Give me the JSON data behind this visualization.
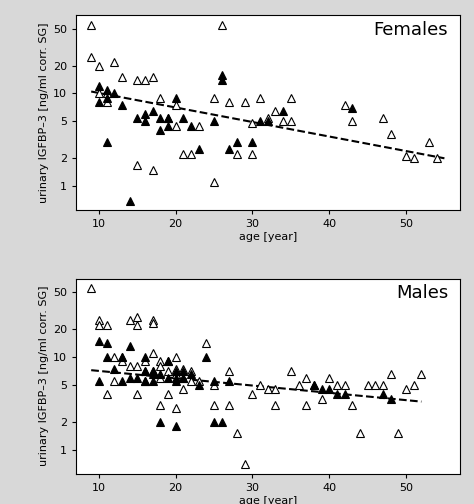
{
  "females_open_x": [
    9,
    9,
    10,
    10,
    11,
    11,
    12,
    13,
    15,
    15,
    16,
    17,
    17,
    18,
    19,
    20,
    20,
    21,
    22,
    23,
    25,
    25,
    26,
    27,
    28,
    29,
    30,
    30,
    31,
    32,
    33,
    34,
    35,
    35,
    42,
    43,
    47,
    48,
    50,
    51,
    53,
    54
  ],
  "females_open_y": [
    55,
    25,
    20,
    10,
    10,
    8,
    22,
    15,
    14,
    1.7,
    14,
    15,
    1.5,
    9,
    5.5,
    7.5,
    4.5,
    2.2,
    2.2,
    4.5,
    1.1,
    9,
    55,
    8,
    2.2,
    8,
    4.8,
    2.2,
    9,
    5.5,
    6.5,
    5,
    5,
    9,
    7.5,
    5,
    5.5,
    3.7,
    2.1,
    2,
    3,
    2
  ],
  "females_filled_x": [
    10,
    10,
    11,
    11,
    11,
    12,
    13,
    14,
    15,
    16,
    16,
    17,
    18,
    18,
    19,
    19,
    20,
    21,
    22,
    23,
    25,
    26,
    26,
    27,
    28,
    30,
    31,
    32,
    34,
    43
  ],
  "females_filled_y": [
    12,
    8,
    11,
    9,
    3,
    10,
    7.5,
    0.7,
    5.5,
    6,
    5,
    6.5,
    5.5,
    4,
    5.5,
    4.5,
    9,
    5.5,
    4.5,
    2.5,
    5,
    16,
    14,
    2.5,
    3,
    3,
    5,
    5,
    6.5,
    7
  ],
  "females_trend_x": [
    9,
    55
  ],
  "females_trend_y": [
    10.5,
    2.0
  ],
  "males_open_x": [
    9,
    10,
    10,
    11,
    11,
    12,
    12,
    13,
    13,
    14,
    14,
    15,
    15,
    15,
    15,
    16,
    16,
    16,
    17,
    17,
    17,
    17,
    18,
    18,
    18,
    18,
    19,
    19,
    19,
    20,
    20,
    20,
    20,
    21,
    21,
    21,
    22,
    22,
    23,
    24,
    25,
    25,
    27,
    27,
    28,
    29,
    30,
    31,
    32,
    33,
    33,
    35,
    36,
    37,
    37,
    38,
    39,
    40,
    41,
    42,
    43,
    44,
    45,
    46,
    47,
    48,
    49,
    50,
    51,
    52
  ],
  "males_open_y": [
    55,
    25,
    22,
    22,
    4,
    10,
    5.5,
    10,
    9,
    25,
    8,
    27,
    22,
    8,
    4,
    9,
    7,
    5.5,
    25,
    23,
    11,
    7,
    9,
    8,
    6,
    3,
    9,
    7,
    4,
    10,
    7.5,
    6.5,
    2.8,
    7.5,
    6,
    4.5,
    7,
    5.5,
    5.5,
    14,
    5,
    3,
    7,
    3,
    1.5,
    0.7,
    4,
    5,
    4.5,
    4.5,
    3,
    7,
    5,
    6,
    3,
    5,
    3.5,
    6,
    5,
    5,
    3,
    1.5,
    5,
    5,
    5,
    6.5,
    1.5,
    4.5,
    5,
    6.5
  ],
  "males_filled_x": [
    10,
    10,
    11,
    11,
    12,
    13,
    13,
    14,
    14,
    15,
    16,
    16,
    16,
    17,
    17,
    17,
    18,
    18,
    19,
    19,
    20,
    20,
    20,
    20,
    21,
    21,
    22,
    23,
    24,
    25,
    25,
    26,
    27,
    38,
    39,
    40,
    41,
    42,
    47,
    48
  ],
  "males_filled_y": [
    15,
    5.5,
    14,
    10,
    7.5,
    10,
    5.5,
    13,
    6,
    6,
    10,
    7,
    5.5,
    7,
    6.5,
    5.5,
    6.5,
    2,
    9,
    6,
    7,
    6,
    5.5,
    1.8,
    7,
    6,
    6.5,
    5,
    10,
    5.5,
    2,
    2,
    5.5,
    5,
    4.5,
    4.5,
    4,
    4,
    4,
    3.5
  ],
  "males_trend_x": [
    9,
    52
  ],
  "males_trend_y": [
    7.2,
    3.3
  ],
  "ylabel": "urinary IGFBP–3 [ng/ml corr. SG]",
  "xlabel": "age [year]",
  "label_females": "Females",
  "label_males": "Males",
  "xlim": [
    7,
    57
  ],
  "ylim_log": [
    0.55,
    70
  ],
  "yticks": [
    1,
    2,
    5,
    10,
    20,
    50
  ],
  "xticks": [
    10,
    20,
    30,
    40,
    50
  ],
  "bg_color": "#d8d8d8",
  "plot_bg": "#ffffff",
  "marker_size": 5.5,
  "marker_edge_width": 0.8,
  "line_color": "black",
  "line_width": 1.5,
  "label_fontsize": 13,
  "axis_label_fontsize": 8,
  "tick_fontsize": 8
}
